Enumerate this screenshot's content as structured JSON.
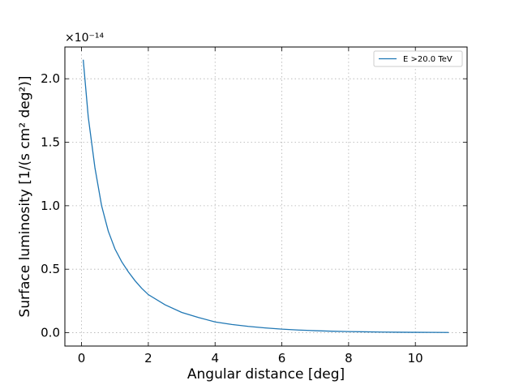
{
  "chart_data": {
    "type": "line",
    "title": "",
    "xlabel": "Angular distance [deg]",
    "ylabel": "Surface luminosity [1/(s cm² deg²)]",
    "y_offset_label": "×10⁻¹⁴",
    "xlim": [
      -0.5,
      11.55
    ],
    "ylim": [
      -0.105,
      2.25
    ],
    "xticks": [
      0,
      2,
      4,
      6,
      8,
      10
    ],
    "xtick_labels": [
      "0",
      "2",
      "4",
      "6",
      "8",
      "10"
    ],
    "yticks": [
      0.0,
      0.5,
      1.0,
      1.5,
      2.0
    ],
    "ytick_labels": [
      "0.0",
      "0.5",
      "1.0",
      "1.5",
      "2.0"
    ],
    "grid": true,
    "grid_style": "dotted",
    "legend_position": "top-right",
    "series": [
      {
        "name": "E >20.0 TeV",
        "color": "#1f77b4",
        "x": [
          0.05,
          0.1,
          0.15,
          0.2,
          0.3,
          0.4,
          0.5,
          0.6,
          0.7,
          0.8,
          0.9,
          1.0,
          1.2,
          1.4,
          1.6,
          1.8,
          2.0,
          2.5,
          3.0,
          3.5,
          4.0,
          4.5,
          5.0,
          5.5,
          6.0,
          6.5,
          7.0,
          7.5,
          8.0,
          8.5,
          9.0,
          9.5,
          10.0,
          10.5,
          11.0
        ],
        "y": [
          2.15,
          2.0,
          1.85,
          1.7,
          1.5,
          1.3,
          1.15,
          1.0,
          0.9,
          0.8,
          0.73,
          0.66,
          0.56,
          0.48,
          0.41,
          0.35,
          0.3,
          0.22,
          0.16,
          0.12,
          0.085,
          0.065,
          0.05,
          0.038,
          0.028,
          0.021,
          0.016,
          0.012,
          0.009,
          0.007,
          0.005,
          0.004,
          0.003,
          0.0025,
          0.002
        ]
      }
    ]
  }
}
